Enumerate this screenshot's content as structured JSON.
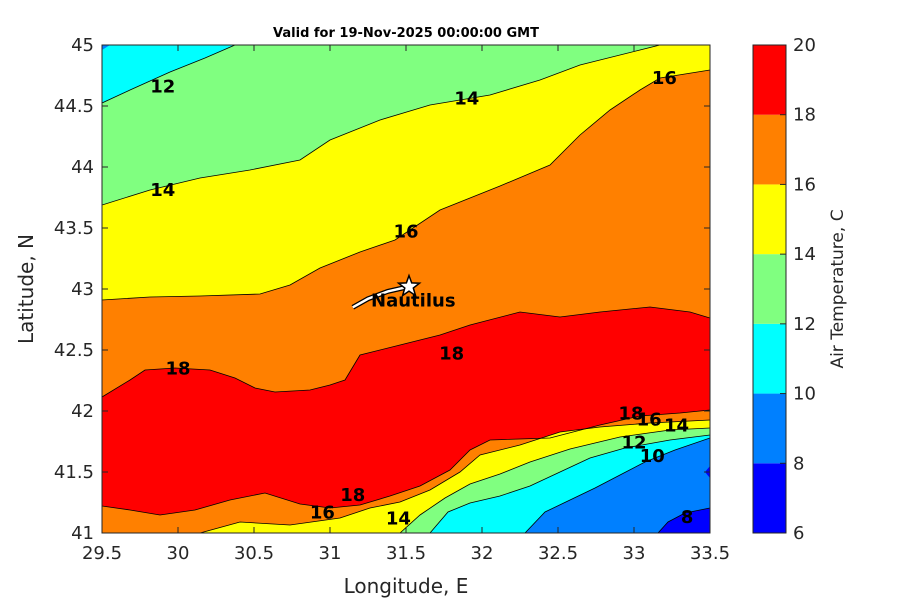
{
  "chart_data": {
    "type": "contourf",
    "title": "Valid for 19-Nov-2025 00:00:00 GMT",
    "xlabel": "Longitude, E",
    "ylabel": "Latitude, N",
    "xlim": [
      29.5,
      33.5
    ],
    "ylim": [
      41,
      45
    ],
    "xticks": [
      "29.5",
      "30",
      "30.5",
      "31",
      "31.5",
      "32",
      "32.5",
      "33",
      "33.5"
    ],
    "yticks": [
      "41",
      "41.5",
      "42",
      "42.5",
      "43",
      "43.5",
      "44",
      "44.5",
      "45"
    ],
    "colorbar": {
      "label": "Air Temperature, C",
      "ticks": [
        "6",
        "8",
        "10",
        "12",
        "14",
        "16",
        "18",
        "20"
      ],
      "levels": [
        6,
        8,
        10,
        12,
        14,
        16,
        18,
        20
      ],
      "colors": [
        "#0000ff",
        "#0080ff",
        "#00ffff",
        "#80ff80",
        "#ffff00",
        "#ff8000",
        "#ff0000",
        "#800000"
      ]
    },
    "contour_labels": [
      {
        "text": "12",
        "lon": 29.9,
        "lat": 44.66
      },
      {
        "text": "14",
        "lon": 31.9,
        "lat": 44.56
      },
      {
        "text": "16",
        "lon": 33.2,
        "lat": 44.73
      },
      {
        "text": "14",
        "lon": 29.9,
        "lat": 43.81
      },
      {
        "text": "16",
        "lon": 31.5,
        "lat": 43.47
      },
      {
        "text": "18",
        "lon": 31.8,
        "lat": 42.47
      },
      {
        "text": "18",
        "lon": 30.0,
        "lat": 42.35
      },
      {
        "text": "18",
        "lon": 32.98,
        "lat": 41.98
      },
      {
        "text": "16",
        "lon": 33.1,
        "lat": 41.93
      },
      {
        "text": "14",
        "lon": 33.28,
        "lat": 41.88
      },
      {
        "text": "12",
        "lon": 33.0,
        "lat": 41.74
      },
      {
        "text": "10",
        "lon": 33.12,
        "lat": 41.63
      },
      {
        "text": "18",
        "lon": 31.15,
        "lat": 41.31
      },
      {
        "text": "16",
        "lon": 30.95,
        "lat": 41.17
      },
      {
        "text": "14",
        "lon": 31.45,
        "lat": 41.12
      },
      {
        "text": "8",
        "lon": 33.35,
        "lat": 41.13
      }
    ],
    "marker": {
      "name": "Nautilus",
      "lon": 31.52,
      "lat": 43.02,
      "symbol": "star"
    },
    "track": [
      [
        31.15,
        42.85
      ],
      [
        31.25,
        42.92
      ],
      [
        31.38,
        42.98
      ],
      [
        31.52,
        43.02
      ]
    ]
  }
}
